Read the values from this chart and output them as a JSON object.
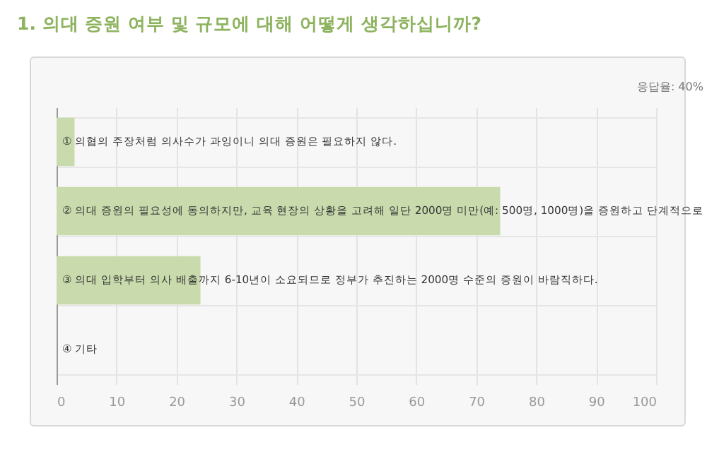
{
  "chart_data": {
    "type": "bar",
    "orientation": "horizontal",
    "title": "1. 의대 증원 여부 및 규모에 대해 어떻게 생각하십니까?",
    "annotations": [
      "응답율: 40%"
    ],
    "categories": [
      "① 의협의 주장처럼 의사수가 과잉이니 의대 증원은 필요하지 않다.",
      "② 의대 증원의 필요성에 동의하지만, 교육 현장의 상황을 고려해 일단 2000명 미만(예: 500명, 1000명)을 증원하고 단계적으로",
      "③ 의대 입학부터 의사 배출까지 6-10년이 소요되므로 정부가 추진하는 2000명 수준의 증원이 바람직하다.",
      "④ 기타"
    ],
    "values": [
      3,
      74,
      24,
      0
    ],
    "color": "#c9dbad",
    "xlim": [
      0,
      100
    ],
    "xticks": [
      0,
      10,
      20,
      30,
      40,
      50,
      60,
      70,
      80,
      90,
      100
    ],
    "grid": true
  }
}
